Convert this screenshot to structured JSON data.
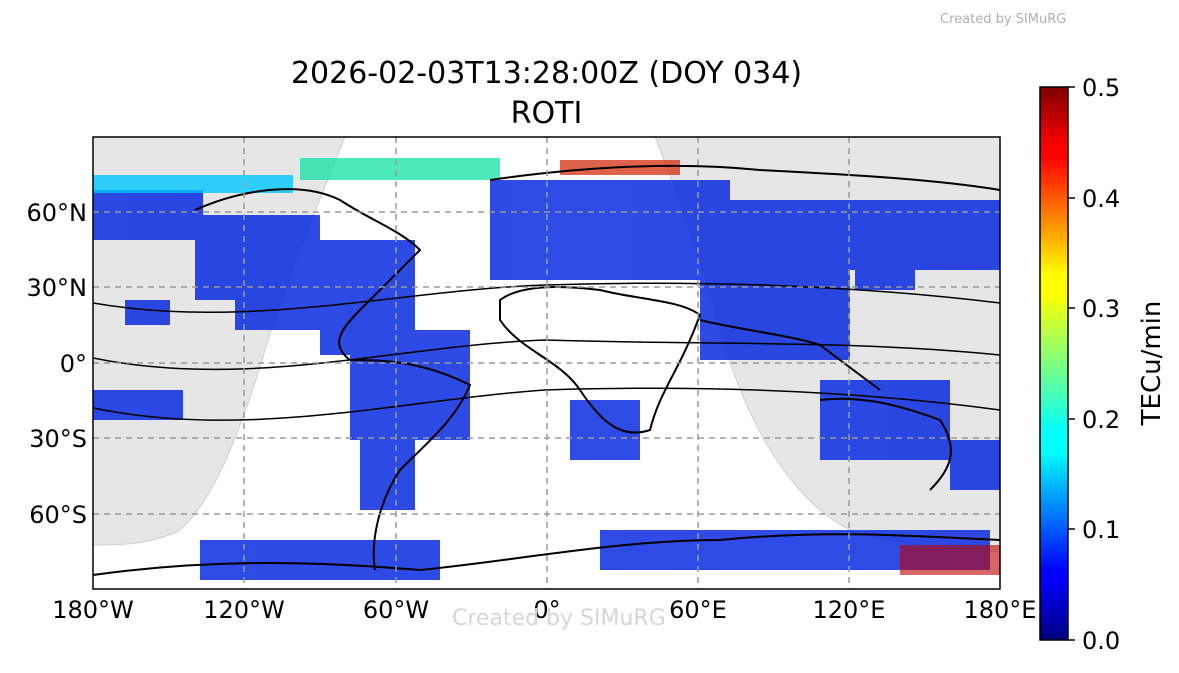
{
  "watermark": "Created by SIMuRG",
  "title": {
    "line1": "2026-02-03T13:28:00Z (DOY 034)",
    "line2": "ROTI"
  },
  "map": {
    "projection": "PlateCarree",
    "lon_range": [
      -180,
      180
    ],
    "lat_range": [
      -90,
      90
    ],
    "grid": true,
    "night_shading_color": "#e6e6e6",
    "x_ticks": [
      {
        "lon": -180,
        "label": "180°W"
      },
      {
        "lon": -120,
        "label": "120°W"
      },
      {
        "lon": -60,
        "label": "60°W"
      },
      {
        "lon": 0,
        "label": "0°"
      },
      {
        "lon": 60,
        "label": "60°E"
      },
      {
        "lon": 120,
        "label": "120°E"
      },
      {
        "lon": 180,
        "label": "180°E"
      }
    ],
    "y_ticks": [
      {
        "lat": 60,
        "label": "60°N"
      },
      {
        "lat": 30,
        "label": "30°N"
      },
      {
        "lat": 0,
        "label": "0°"
      },
      {
        "lat": -30,
        "label": "30°S"
      },
      {
        "lat": -60,
        "label": "60°S"
      }
    ]
  },
  "colorbar": {
    "label": "TECu/min",
    "range": [
      0.0,
      0.5
    ],
    "colormap": "jet",
    "ticks": [
      "0.0",
      "0.1",
      "0.2",
      "0.3",
      "0.4",
      "0.5"
    ]
  }
}
